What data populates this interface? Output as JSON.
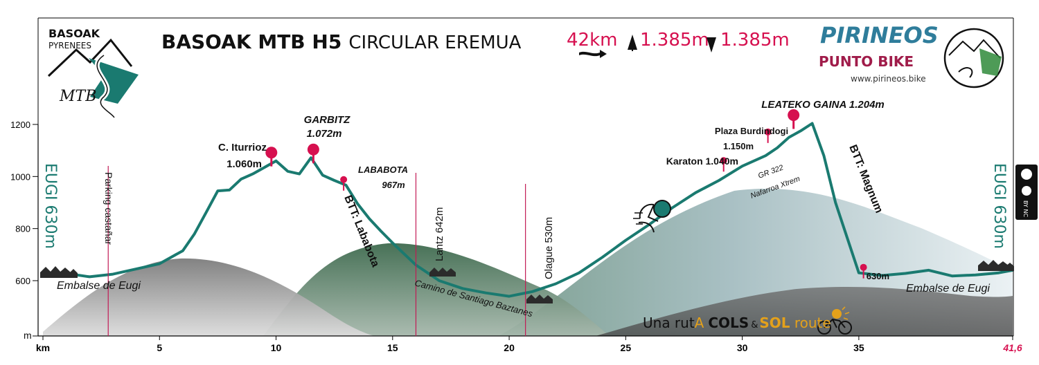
{
  "header": {
    "title_bold": "BASOAK MTB H5",
    "title_light": "CIRCULAR EREMUA",
    "distance": "42km",
    "ascent": "1.385m",
    "descent": "1.385m"
  },
  "logos": {
    "left_line1": "BASOAK",
    "left_line2": "PYRENEES",
    "left_mtb": "MTB",
    "right_line1": "PIRINEOS",
    "right_line2": "PUNTO BIKE",
    "right_url": "www.pirineos.bike",
    "cc": "BY NC"
  },
  "footer_brand": {
    "part1": "Una rut",
    "part2": "A",
    "part3": "COLS",
    "part4": "&",
    "part5": "SOL",
    "part6": " route"
  },
  "colors": {
    "profile_line": "#1a7a70",
    "marker": "#d6104f",
    "teal_text": "#1a7a70",
    "pink_text": "#d6104f",
    "grey_mountain": "#8f8f8f",
    "green_mountain": "#476e55",
    "blue_mountain": "#a9c1c9",
    "gold": "#e4a11b"
  },
  "chart_data": {
    "type": "area",
    "xlabel": "km",
    "ylabel": "m",
    "xlim": [
      0,
      41.6
    ],
    "ylim": [
      530,
      1300
    ],
    "x_ticks": [
      0,
      5,
      10,
      15,
      20,
      25,
      30,
      35,
      41.6
    ],
    "x_tick_labels": [
      "km",
      "5",
      "10",
      "15",
      "20",
      "25",
      "30",
      "35",
      "41,6"
    ],
    "y_ticks": [
      600,
      800,
      1000,
      1200
    ],
    "y_tick_labels": [
      "600",
      "800",
      "1000",
      "1200"
    ],
    "y_axis_bottom_label": "m",
    "grid": false,
    "series": [
      {
        "x": [
          0,
          1,
          2,
          3,
          4,
          5,
          6,
          6.5,
          7,
          7.5,
          8,
          8.5,
          9,
          9.5,
          10,
          10.5,
          11,
          11.5,
          12,
          12.5,
          13,
          13.5,
          14,
          14.5,
          15,
          16,
          17,
          18,
          19,
          20,
          21,
          22,
          23,
          24,
          25,
          26,
          27,
          28,
          29,
          30,
          31,
          31.5,
          32,
          32.5,
          33,
          33.5,
          34,
          35,
          36,
          37,
          38,
          39,
          40,
          41,
          41.6
        ],
        "y": [
          630,
          628,
          615,
          625,
          645,
          665,
          715,
          780,
          862,
          945,
          948,
          990,
          1010,
          1035,
          1060,
          1020,
          1010,
          1072,
          1005,
          985,
          967,
          895,
          838,
          790,
          745,
          660,
          600,
          570,
          553,
          540,
          558,
          588,
          630,
          690,
          755,
          815,
          880,
          938,
          985,
          1040,
          1080,
          1110,
          1150,
          1175,
          1204,
          1080,
          900,
          630,
          620,
          628,
          640,
          618,
          622,
          630,
          640
        ]
      }
    ],
    "markers": [
      {
        "label": "C. Iturrioz",
        "value": "1.060m",
        "x": 9.8,
        "y": 1060
      },
      {
        "label": "GARBITZ",
        "value": "1.072m",
        "x": 11.6,
        "y": 1072
      },
      {
        "label": "LABABOTA",
        "value": "967m",
        "x": 12.9,
        "y": 967
      },
      {
        "label": "Karaton 1.040m",
        "x": 29.2,
        "y": 1040
      },
      {
        "label": "Plaza Burdindogi",
        "value": "1.150m",
        "x": 31.1,
        "y": 1150
      },
      {
        "label": "LEATEKO GAINA 1.204m",
        "x": 32.2,
        "y": 1204
      },
      {
        "label": "630m",
        "x": 35.2,
        "y": 630
      }
    ],
    "vertical_lines": [
      {
        "label": "Parking castañar",
        "x": 2.8
      },
      {
        "label": "Lantz 642m",
        "x": 16.0
      },
      {
        "label": "Olague 530m",
        "x": 20.7
      }
    ],
    "annotations": {
      "start": "EUGI 630m",
      "end": "EUGI 630m",
      "reservoir_start": "Embalse de Eugi",
      "reservoir_end": "Embalse de Eugi",
      "trail_lababota": "BTT: Lababota",
      "trail_santiago": "Camino de Santiago Baztanes",
      "trail_gr322": "GR 322",
      "trail_xtrem": "Nafarroa Xtrem",
      "trail_magnum": "BTT: Magnum"
    }
  }
}
